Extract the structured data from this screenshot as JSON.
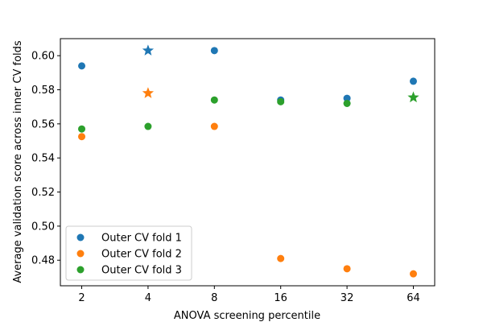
{
  "chart_data": {
    "type": "scatter",
    "xlabel": "ANOVA screening percentile",
    "ylabel": "Average validation score across inner CV folds",
    "x_scale": "log2",
    "xlim": [
      1.6,
      80
    ],
    "ylim": [
      0.465,
      0.61
    ],
    "x_ticks": [
      2,
      4,
      8,
      16,
      32,
      64
    ],
    "y_ticks": [
      0.48,
      0.5,
      0.52,
      0.54,
      0.56,
      0.58,
      0.6
    ],
    "y_tick_labels": [
      "0.48",
      "0.50",
      "0.52",
      "0.54",
      "0.56",
      "0.58",
      "0.60"
    ],
    "grid": false,
    "legend_position": "lower-left",
    "series": [
      {
        "name": "Outer CV fold 1",
        "color": "#1f77b4",
        "x": [
          2,
          4,
          8,
          16,
          32,
          64
        ],
        "y": [
          0.594,
          0.603,
          0.603,
          0.574,
          0.575,
          0.585
        ],
        "best_index": 1
      },
      {
        "name": "Outer CV fold 2",
        "color": "#ff7f0e",
        "x": [
          2,
          4,
          8,
          16,
          32,
          64
        ],
        "y": [
          0.5525,
          0.578,
          0.5585,
          0.481,
          0.475,
          0.472
        ],
        "best_index": 1
      },
      {
        "name": "Outer CV fold 3",
        "color": "#2ca02c",
        "x": [
          2,
          4,
          8,
          16,
          32,
          64
        ],
        "y": [
          0.557,
          0.5585,
          0.574,
          0.573,
          0.572,
          0.5755
        ],
        "best_index": 5
      }
    ]
  }
}
